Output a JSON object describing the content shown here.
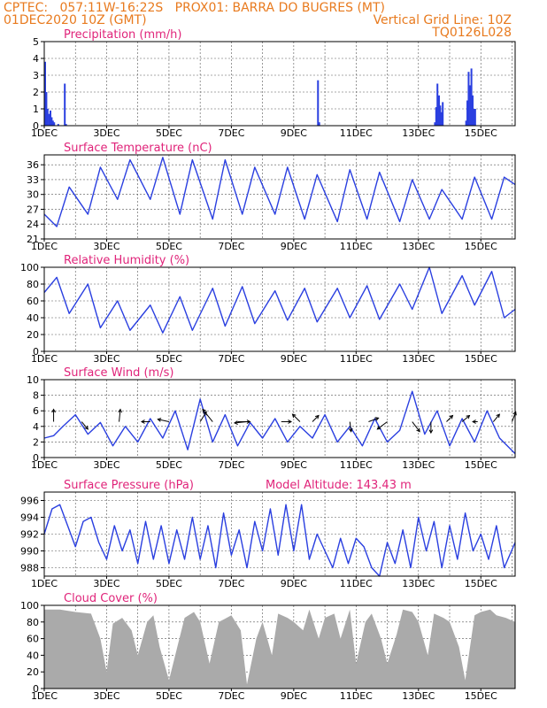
{
  "header": {
    "line1_left": "CPTEC:   057:11W-16:22S   PROX01: BARRA DO BUGRES (MT)",
    "line2_left": "01DEC2020 10Z (GMT)",
    "line2_right": "Vertical Grid Line: 10Z",
    "line3_right": "TQ0126L028"
  },
  "colors": {
    "header": "#e87a1e",
    "panel_title": "#e0247a",
    "series_line": "#2a3fe0",
    "precip_bar": "#2a3fe0",
    "cloud_fill": "#aaaaaa",
    "wind_arrow": "#000000"
  },
  "chart_data": [
    {
      "type": "bar",
      "title": "Precipitation (mm/h)",
      "ylim": [
        0,
        5
      ],
      "yticks": [
        "0",
        "1",
        "2",
        "3",
        "4",
        "5"
      ],
      "xticks": [
        "1DEC",
        "3DEC",
        "5DEC",
        "7DEC",
        "9DEC",
        "11DEC",
        "13DEC",
        "15DEC"
      ],
      "x_start_day": 1.0,
      "x_end_day": 16.1,
      "grid": "dashed",
      "bars": [
        {
          "x": 1.0,
          "v": 3.8
        },
        {
          "x": 1.04,
          "v": 2.0
        },
        {
          "x": 1.08,
          "v": 1.0
        },
        {
          "x": 1.13,
          "v": 0.7
        },
        {
          "x": 1.17,
          "v": 0.9
        },
        {
          "x": 1.21,
          "v": 0.5
        },
        {
          "x": 1.25,
          "v": 0.3
        },
        {
          "x": 1.29,
          "v": 0.2
        },
        {
          "x": 1.42,
          "v": 0.1
        },
        {
          "x": 1.63,
          "v": 2.5
        },
        {
          "x": 1.67,
          "v": 0.1
        },
        {
          "x": 9.75,
          "v": 2.7
        },
        {
          "x": 9.79,
          "v": 0.2
        },
        {
          "x": 13.5,
          "v": 0.2
        },
        {
          "x": 13.54,
          "v": 1.1
        },
        {
          "x": 13.58,
          "v": 2.5
        },
        {
          "x": 13.63,
          "v": 1.8
        },
        {
          "x": 13.67,
          "v": 1.2
        },
        {
          "x": 13.71,
          "v": 0.8
        },
        {
          "x": 13.75,
          "v": 1.4
        },
        {
          "x": 14.5,
          "v": 0.3
        },
        {
          "x": 14.54,
          "v": 1.5
        },
        {
          "x": 14.58,
          "v": 3.2
        },
        {
          "x": 14.63,
          "v": 2.4
        },
        {
          "x": 14.67,
          "v": 3.4
        },
        {
          "x": 14.71,
          "v": 1.8
        },
        {
          "x": 14.75,
          "v": 1.0
        },
        {
          "x": 14.79,
          "v": 1.0
        }
      ]
    },
    {
      "type": "line",
      "title": "Surface Temperature (nC)",
      "ylim": [
        21,
        38
      ],
      "yticks": [
        "21",
        "24",
        "27",
        "30",
        "33",
        "36"
      ],
      "ytick_values": [
        21,
        24,
        27,
        30,
        33,
        36
      ],
      "xticks": [
        "1DEC",
        "3DEC",
        "5DEC",
        "7DEC",
        "9DEC",
        "11DEC",
        "13DEC",
        "15DEC"
      ],
      "grid": "dashed",
      "x": [
        1.0,
        1.4,
        1.8,
        2.4,
        2.8,
        3.35,
        3.75,
        4.4,
        4.8,
        5.35,
        5.75,
        6.4,
        6.8,
        7.35,
        7.75,
        8.4,
        8.8,
        9.35,
        9.75,
        10.4,
        10.8,
        11.35,
        11.75,
        12.4,
        12.8,
        13.35,
        13.75,
        14.4,
        14.8,
        15.35,
        15.75,
        16.1
      ],
      "y": [
        26,
        23.5,
        31.5,
        26,
        35.5,
        29,
        37,
        29,
        37.5,
        26,
        37,
        25,
        37,
        26,
        35.5,
        26,
        35.5,
        25,
        34,
        24.5,
        35,
        25,
        34.5,
        24.5,
        33,
        25,
        31,
        25,
        33.5,
        25,
        33.5,
        32
      ]
    },
    {
      "type": "line",
      "title": "Relative Humidity (%)",
      "ylim": [
        0,
        100
      ],
      "yticks": [
        "0",
        "20",
        "40",
        "60",
        "80",
        "100"
      ],
      "ytick_values": [
        0,
        20,
        40,
        60,
        80,
        100
      ],
      "xticks": [
        "1DEC",
        "3DEC",
        "5DEC",
        "7DEC",
        "9DEC",
        "11DEC",
        "13DEC",
        "15DEC"
      ],
      "grid": "dashed",
      "x": [
        1.0,
        1.4,
        1.8,
        2.4,
        2.8,
        3.35,
        3.75,
        4.4,
        4.8,
        5.35,
        5.75,
        6.4,
        6.8,
        7.35,
        7.75,
        8.4,
        8.8,
        9.35,
        9.75,
        10.4,
        10.8,
        11.35,
        11.75,
        12.4,
        12.8,
        13.35,
        13.75,
        14.4,
        14.8,
        15.35,
        15.75,
        16.1
      ],
      "y": [
        70,
        88,
        45,
        80,
        28,
        60,
        25,
        55,
        22,
        65,
        25,
        75,
        30,
        77,
        33,
        72,
        37,
        75,
        35,
        75,
        40,
        78,
        38,
        80,
        50,
        100,
        45,
        90,
        55,
        95,
        40,
        50
      ]
    },
    {
      "type": "line",
      "title": "Surface Wind (m/s)",
      "ylim": [
        0,
        10
      ],
      "yticks": [
        "0",
        "2",
        "4",
        "6",
        "8",
        "10"
      ],
      "ytick_values": [
        0,
        2,
        4,
        6,
        8,
        10
      ],
      "xticks": [
        "1DEC",
        "3DEC",
        "5DEC",
        "7DEC",
        "9DEC",
        "11DEC",
        "13DEC",
        "15DEC"
      ],
      "grid": "dashed",
      "x": [
        1.0,
        1.3,
        1.6,
        2.0,
        2.4,
        2.8,
        3.2,
        3.6,
        4.0,
        4.4,
        4.8,
        5.2,
        5.6,
        6.0,
        6.4,
        6.8,
        7.2,
        7.6,
        8.0,
        8.4,
        8.8,
        9.2,
        9.6,
        10.0,
        10.4,
        10.8,
        11.2,
        11.6,
        12.0,
        12.4,
        12.8,
        13.2,
        13.6,
        14.0,
        14.4,
        14.8,
        15.2,
        15.6,
        16.1
      ],
      "y": [
        2.5,
        2.8,
        4.0,
        5.5,
        3.0,
        4.5,
        1.5,
        4.0,
        2.0,
        5.0,
        2.5,
        6.0,
        1.0,
        7.5,
        2.0,
        5.5,
        1.5,
        4.5,
        2.5,
        5.0,
        2.0,
        4.0,
        2.5,
        5.5,
        2.0,
        4.0,
        1.5,
        5.0,
        2.0,
        3.5,
        8.5,
        3.0,
        6.0,
        1.5,
        5.0,
        2.0,
        6.0,
        2.5,
        0.5
      ],
      "arrows": [
        {
          "x": 1.3,
          "dx": 0.0,
          "dy": 1.0
        },
        {
          "x": 2.2,
          "dx": 0.5,
          "dy": -0.6
        },
        {
          "x": 3.4,
          "dx": 0.1,
          "dy": 1.0
        },
        {
          "x": 4.4,
          "dx": -0.7,
          "dy": 0.0
        },
        {
          "x": 5.0,
          "dx": -0.9,
          "dy": 0.2
        },
        {
          "x": 6.0,
          "dx": 0.5,
          "dy": 0.8
        },
        {
          "x": 6.4,
          "dx": -0.8,
          "dy": 1.0
        },
        {
          "x": 7.2,
          "dx": 1.0,
          "dy": 0.0
        },
        {
          "x": 7.5,
          "dx": -1.0,
          "dy": -0.1
        },
        {
          "x": 8.6,
          "dx": 0.8,
          "dy": 0.0
        },
        {
          "x": 9.2,
          "dx": -0.6,
          "dy": 0.6
        },
        {
          "x": 9.6,
          "dx": 0.5,
          "dy": 0.5
        },
        {
          "x": 10.8,
          "dx": 0.1,
          "dy": -0.8
        },
        {
          "x": 11.4,
          "dx": 0.8,
          "dy": 0.3
        },
        {
          "x": 12.0,
          "dx": -0.8,
          "dy": -0.6
        },
        {
          "x": 12.8,
          "dx": 0.6,
          "dy": -0.8
        },
        {
          "x": 13.4,
          "dx": 0.0,
          "dy": -0.9
        },
        {
          "x": 13.9,
          "dx": 0.5,
          "dy": 0.5
        },
        {
          "x": 14.4,
          "dx": 0.6,
          "dy": 0.5
        },
        {
          "x": 14.9,
          "dx": -0.4,
          "dy": 0.0
        },
        {
          "x": 15.4,
          "dx": 0.5,
          "dy": 0.6
        },
        {
          "x": 16.0,
          "dx": 0.3,
          "dy": 0.8
        }
      ]
    },
    {
      "type": "line",
      "title": "Surface Pressure (hPa)",
      "subtitle": "Model Altitude: 143.43 m",
      "ylim": [
        987,
        997
      ],
      "yticks": [
        "988",
        "990",
        "992",
        "994",
        "996"
      ],
      "ytick_values": [
        988,
        990,
        992,
        994,
        996
      ],
      "xticks": [
        "1DEC",
        "3DEC",
        "5DEC",
        "7DEC",
        "9DEC",
        "11DEC",
        "13DEC",
        "15DEC"
      ],
      "grid": "dashed",
      "x": [
        1.0,
        1.25,
        1.5,
        1.75,
        2.0,
        2.25,
        2.5,
        2.75,
        3.0,
        3.25,
        3.5,
        3.75,
        4.0,
        4.25,
        4.5,
        4.75,
        5.0,
        5.25,
        5.5,
        5.75,
        6.0,
        6.25,
        6.5,
        6.75,
        7.0,
        7.25,
        7.5,
        7.75,
        8.0,
        8.25,
        8.5,
        8.75,
        9.0,
        9.25,
        9.5,
        9.75,
        10.0,
        10.25,
        10.5,
        10.75,
        11.0,
        11.25,
        11.5,
        11.75,
        12.0,
        12.25,
        12.5,
        12.75,
        13.0,
        13.25,
        13.5,
        13.75,
        14.0,
        14.25,
        14.5,
        14.75,
        15.0,
        15.25,
        15.5,
        15.75,
        16.1
      ],
      "y": [
        992,
        995,
        995.5,
        993,
        990.5,
        993.5,
        994,
        991,
        989,
        993,
        990,
        992.5,
        988.5,
        993.5,
        989,
        993,
        988.5,
        992.5,
        989,
        994,
        989,
        993,
        988,
        994.5,
        989.5,
        992.5,
        988,
        993.5,
        990,
        995,
        989.5,
        995.5,
        990,
        995.5,
        989,
        992,
        990,
        988,
        991.5,
        988.5,
        991.5,
        990.5,
        988,
        987,
        991,
        988.5,
        992.5,
        988,
        994,
        990,
        993.5,
        988,
        993,
        989,
        994.5,
        990,
        992,
        989,
        993,
        988,
        991
      ]
    },
    {
      "type": "area",
      "title": "Cloud Cover (%)",
      "ylim": [
        0,
        100
      ],
      "yticks": [
        "0",
        "20",
        "40",
        "60",
        "80",
        "100"
      ],
      "ytick_values": [
        0,
        20,
        40,
        60,
        80,
        100
      ],
      "xticks": [
        "1DEC",
        "3DEC",
        "5DEC",
        "7DEC",
        "9DEC",
        "11DEC",
        "13DEC",
        "15DEC"
      ],
      "grid": "dashed",
      "x": [
        1.0,
        1.5,
        2.0,
        2.5,
        2.8,
        3.0,
        3.2,
        3.5,
        3.8,
        4.0,
        4.3,
        4.5,
        4.7,
        5.0,
        5.3,
        5.5,
        5.8,
        6.0,
        6.3,
        6.6,
        7.0,
        7.3,
        7.5,
        7.8,
        8.0,
        8.3,
        8.5,
        8.8,
        9.0,
        9.3,
        9.5,
        9.8,
        10.0,
        10.3,
        10.5,
        10.8,
        11.0,
        11.3,
        11.5,
        11.8,
        12.0,
        12.3,
        12.5,
        12.8,
        13.0,
        13.3,
        13.5,
        13.8,
        14.0,
        14.3,
        14.5,
        14.8,
        15.0,
        15.3,
        15.5,
        15.8,
        16.1
      ],
      "y": [
        95,
        95,
        92,
        90,
        60,
        20,
        78,
        85,
        70,
        40,
        80,
        88,
        50,
        10,
        55,
        85,
        92,
        80,
        30,
        80,
        88,
        70,
        5,
        60,
        80,
        40,
        90,
        85,
        80,
        70,
        95,
        60,
        85,
        90,
        60,
        95,
        30,
        80,
        90,
        60,
        30,
        65,
        95,
        92,
        80,
        40,
        90,
        85,
        80,
        50,
        10,
        88,
        92,
        95,
        88,
        85,
        80
      ]
    }
  ]
}
